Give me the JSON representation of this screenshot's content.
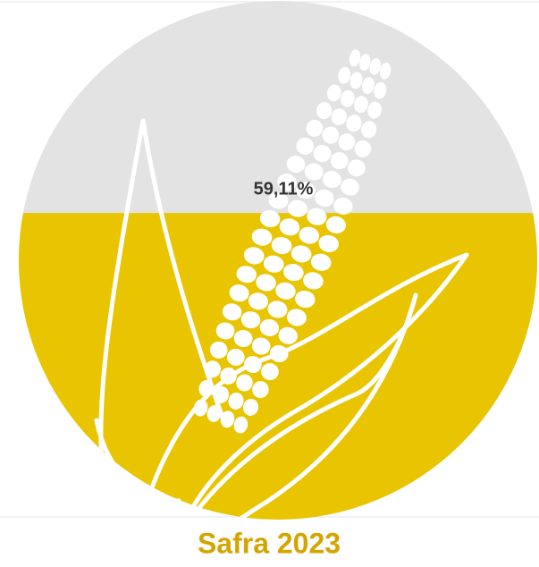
{
  "chart_data": {
    "type": "pictorial-fill",
    "title": "Safra 2023",
    "value": 59.11,
    "value_label": "59,11%",
    "ylim": [
      0,
      100
    ],
    "color": "#e8c500",
    "background_color": "#e3e3e3"
  }
}
